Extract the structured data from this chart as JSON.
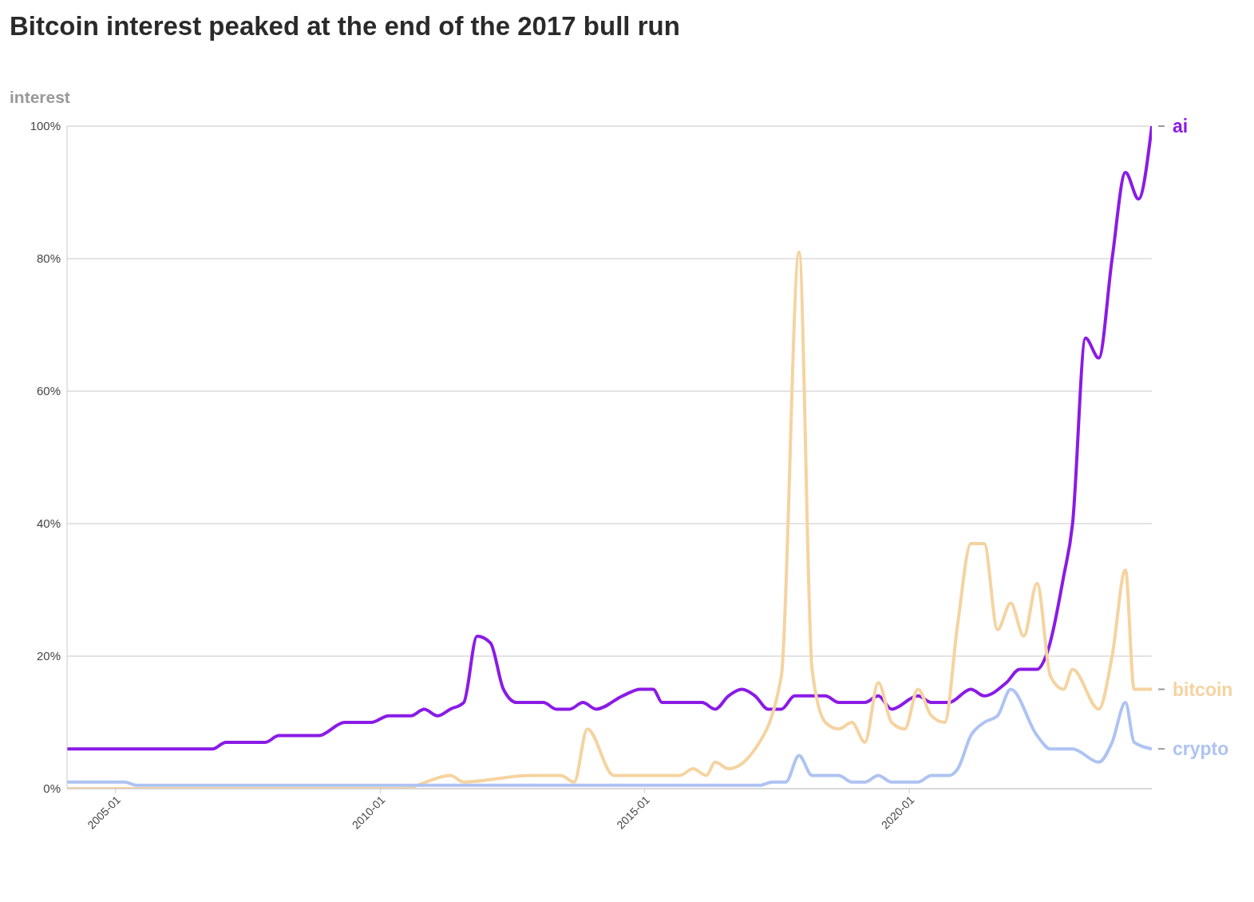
{
  "chart_data": {
    "type": "line",
    "title": "Bitcoin interest peaked at the end of the 2017 bull run",
    "ylabel": "interest",
    "xlim": [
      "2004-02",
      "2024-08"
    ],
    "xticks": [
      "2005-01",
      "2010-01",
      "2015-01",
      "2020-01"
    ],
    "ylim": [
      0,
      100
    ],
    "yticks": [
      {
        "value": 0,
        "label": "0%"
      },
      {
        "value": 20,
        "label": "20%"
      },
      {
        "value": 40,
        "label": "40%"
      },
      {
        "value": 60,
        "label": "60%"
      },
      {
        "value": 80,
        "label": "80%"
      },
      {
        "value": 100,
        "label": "100%"
      }
    ],
    "grid": "y",
    "marker": "none",
    "line_style": "solid",
    "legend": "right",
    "series": [
      {
        "name": "ai",
        "color": "#8a1be6",
        "x": [
          "2004-02",
          "2006-11",
          "2007-02",
          "2007-11",
          "2008-02",
          "2008-11",
          "2009-05",
          "2009-11",
          "2010-03",
          "2010-08",
          "2010-11",
          "2011-02",
          "2011-05",
          "2011-08",
          "2011-11",
          "2012-02",
          "2012-05",
          "2012-08",
          "2013-02",
          "2013-05",
          "2013-08",
          "2013-11",
          "2014-02",
          "2014-08",
          "2014-12",
          "2015-03",
          "2015-05",
          "2016-02",
          "2016-05",
          "2016-08",
          "2016-11",
          "2017-02",
          "2017-05",
          "2017-08",
          "2017-11",
          "2018-06",
          "2018-09",
          "2019-03",
          "2019-06",
          "2019-09",
          "2020-03",
          "2020-06",
          "2020-10",
          "2021-03",
          "2021-06",
          "2021-11",
          "2022-02",
          "2022-06",
          "2022-08",
          "2022-12",
          "2023-02",
          "2023-05",
          "2023-08",
          "2023-11",
          "2024-02",
          "2024-05",
          "2024-08"
        ],
        "values": [
          6,
          6,
          7,
          7,
          8,
          8,
          10,
          10,
          11,
          11,
          12,
          11,
          12,
          13,
          23,
          22,
          15,
          13,
          13,
          12,
          12,
          13,
          12,
          14,
          15,
          15,
          13,
          13,
          12,
          14,
          15,
          14,
          12,
          12,
          14,
          14,
          13,
          13,
          14,
          12,
          14,
          13,
          13,
          15,
          14,
          16,
          18,
          18,
          20,
          32,
          40,
          68,
          65,
          80,
          93,
          89,
          100
        ]
      },
      {
        "name": "bitcoin",
        "color": "#f5d3a0",
        "x": [
          "2004-02",
          "2010-06",
          "2011-05",
          "2011-08",
          "2012-11",
          "2013-06",
          "2013-09",
          "2013-12",
          "2014-06",
          "2015-09",
          "2015-12",
          "2016-03",
          "2016-05",
          "2016-08",
          "2017-02",
          "2017-08",
          "2017-12",
          "2018-03",
          "2018-06",
          "2018-09",
          "2018-12",
          "2019-03",
          "2019-06",
          "2019-09",
          "2019-12",
          "2020-03",
          "2020-06",
          "2020-09",
          "2020-12",
          "2021-03",
          "2021-06",
          "2021-09",
          "2021-12",
          "2022-03",
          "2022-06",
          "2022-09",
          "2022-12",
          "2023-02",
          "2023-08",
          "2023-11",
          "2024-02",
          "2024-04",
          "2024-08"
        ],
        "values": [
          0,
          0,
          2,
          1,
          2,
          2,
          1,
          9,
          2,
          2,
          3,
          2,
          4,
          3,
          6,
          17,
          81,
          18,
          10,
          9,
          10,
          7,
          16,
          10,
          9,
          15,
          11,
          10,
          25,
          37,
          37,
          24,
          28,
          23,
          31,
          17,
          15,
          18,
          12,
          20,
          33,
          15,
          15
        ]
      },
      {
        "name": "crypto",
        "color": "#aec3f2",
        "x": [
          "2004-02",
          "2005-03",
          "2005-06",
          "2017-03",
          "2017-06",
          "2017-09",
          "2017-12",
          "2018-03",
          "2018-09",
          "2018-12",
          "2019-03",
          "2019-06",
          "2019-09",
          "2020-03",
          "2020-06",
          "2020-10",
          "2020-12",
          "2021-03",
          "2021-06",
          "2021-09",
          "2021-12",
          "2022-06",
          "2022-09",
          "2023-02",
          "2023-08",
          "2023-11",
          "2024-02",
          "2024-04",
          "2024-08"
        ],
        "values": [
          1,
          1,
          0.5,
          0.5,
          1,
          1,
          5,
          2,
          2,
          1,
          1,
          2,
          1,
          1,
          2,
          2,
          3,
          8,
          10,
          11,
          15,
          8,
          6,
          6,
          4,
          7,
          13,
          7,
          6
        ]
      }
    ]
  }
}
